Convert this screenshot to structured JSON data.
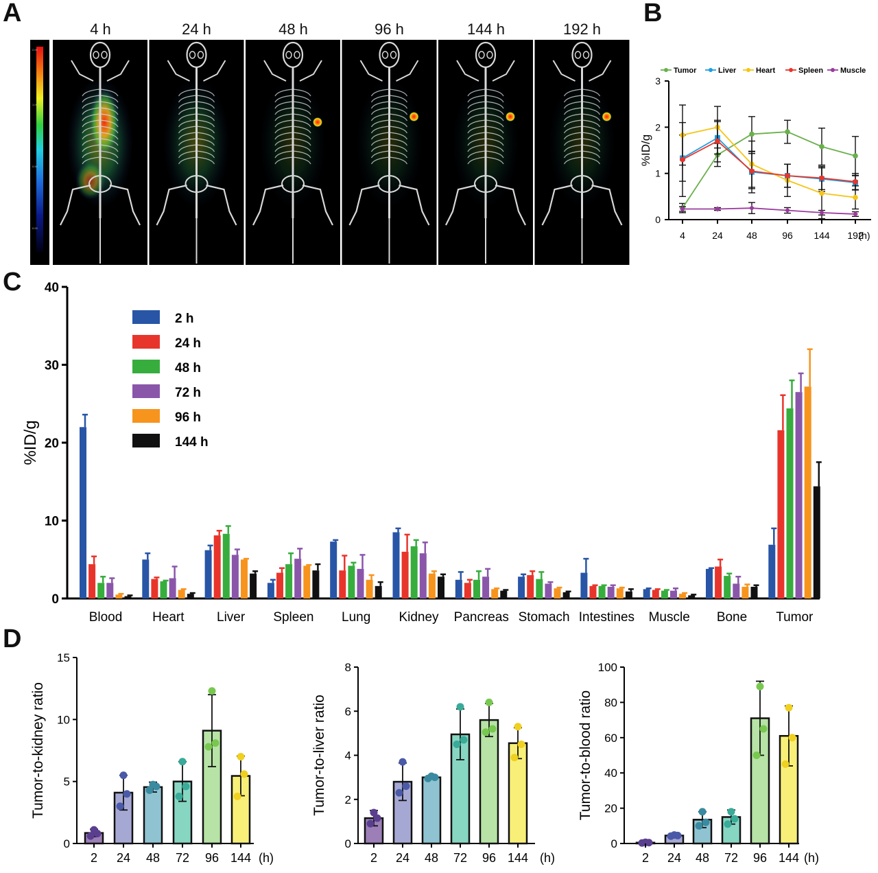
{
  "panels": {
    "a": "A",
    "b": "B",
    "c": "C",
    "d": "D"
  },
  "imaging": {
    "timepoints": [
      "4 h",
      "24 h",
      "48 h",
      "96 h",
      "144 h",
      "192 h"
    ],
    "colorbar_ticks": [
      "2.00",
      "1.00",
      "0.50",
      "0.00"
    ],
    "hotspot_visible": [
      false,
      false,
      true,
      true,
      true,
      true
    ]
  },
  "colors": {
    "tumor": "#6ab04c",
    "liver": "#1e9ee0",
    "heart": "#f5c518",
    "spleen": "#e8352b",
    "muscle": "#9b3a9e",
    "c_2h": "#2855a6",
    "c_24h": "#e8352b",
    "c_48h": "#37ad3e",
    "c_72h": "#8a56aa",
    "c_96h": "#f7941d",
    "c_144h": "#111111"
  },
  "chart_data": [
    {
      "type": "line",
      "ylabel": "%ID/g",
      "ylim": [
        0,
        3
      ],
      "yticks": [
        "0",
        "1",
        "2",
        "3"
      ],
      "x": [
        "4",
        "24",
        "48",
        "96",
        "144",
        "192"
      ],
      "x_unit": "(h)",
      "legend_position": "top",
      "series": [
        {
          "name": "Tumor",
          "values": [
            0.25,
            1.4,
            1.85,
            1.9,
            1.58,
            1.38
          ],
          "err": [
            0.1,
            0.25,
            0.38,
            0.25,
            0.4,
            0.42
          ]
        },
        {
          "name": "Liver",
          "values": [
            1.33,
            1.77,
            1.03,
            0.95,
            0.88,
            0.8
          ],
          "err": [
            0.5,
            0.35,
            0.45,
            0.25,
            0.27,
            0.15
          ]
        },
        {
          "name": "Heart",
          "values": [
            1.83,
            2.0,
            1.2,
            0.85,
            0.57,
            0.48
          ],
          "err": [
            0.65,
            0.45,
            0.5,
            0.35,
            0.55,
            0.25
          ]
        },
        {
          "name": "Spleen",
          "values": [
            1.3,
            1.7,
            1.05,
            0.95,
            0.9,
            0.82
          ],
          "err": [
            0.8,
            0.45,
            0.38,
            0.25,
            0.25,
            0.18
          ]
        },
        {
          "name": "Muscle",
          "values": [
            0.23,
            0.23,
            0.25,
            0.2,
            0.15,
            0.12
          ],
          "err": [
            0.05,
            0.03,
            0.12,
            0.06,
            0.05,
            0.05
          ]
        }
      ]
    },
    {
      "type": "bar",
      "ylabel": "%ID/g",
      "ylim": [
        0,
        40
      ],
      "yticks": [
        "0",
        "10",
        "20",
        "30",
        "40"
      ],
      "categories": [
        "Blood",
        "Heart",
        "Liver",
        "Spleen",
        "Lung",
        "Kidney",
        "Pancreas",
        "Stomach",
        "Intestines",
        "Muscle",
        "Bone",
        "Tumor"
      ],
      "legend_position": "top-left",
      "series": [
        {
          "name": "2 h",
          "values": [
            22.0,
            5.0,
            6.2,
            2.0,
            7.3,
            8.5,
            2.4,
            2.8,
            3.3,
            1.2,
            3.8,
            6.9
          ],
          "err": [
            1.6,
            0.8,
            0.6,
            0.4,
            0.2,
            0.5,
            1.0,
            0.3,
            1.8,
            0.1,
            0.1,
            2.1
          ]
        },
        {
          "name": "24 h",
          "values": [
            4.4,
            2.5,
            8.1,
            3.3,
            3.6,
            6.0,
            2.0,
            3.0,
            1.6,
            1.1,
            4.1,
            21.6
          ],
          "err": [
            1.0,
            0.2,
            0.6,
            0.6,
            1.9,
            2.2,
            0.4,
            0.5,
            0.1,
            0.1,
            0.9,
            4.5
          ]
        },
        {
          "name": "48 h",
          "values": [
            2.0,
            2.2,
            8.3,
            4.4,
            4.2,
            6.7,
            2.4,
            2.5,
            1.6,
            1.0,
            2.9,
            24.4
          ],
          "err": [
            0.8,
            0.1,
            1.0,
            1.4,
            0.4,
            0.8,
            1.1,
            0.9,
            0.1,
            0.1,
            0.3,
            3.6
          ]
        },
        {
          "name": "72 h",
          "values": [
            2.0,
            2.6,
            5.6,
            5.1,
            3.8,
            5.8,
            2.8,
            1.9,
            1.5,
            1.0,
            1.9,
            26.5
          ],
          "err": [
            0.6,
            1.5,
            0.7,
            1.3,
            1.8,
            1.4,
            1.0,
            0.2,
            0.2,
            0.3,
            0.9,
            2.4
          ]
        },
        {
          "name": "96 h",
          "values": [
            0.5,
            1.1,
            5.0,
            4.2,
            2.4,
            3.2,
            1.2,
            1.3,
            1.3,
            0.6,
            1.5,
            27.2
          ],
          "err": [
            0.1,
            0.1,
            0.1,
            0.1,
            0.6,
            0.3,
            0.1,
            0.1,
            0.1,
            0.1,
            0.3,
            4.8
          ]
        },
        {
          "name": "144 h",
          "values": [
            0.3,
            0.6,
            3.2,
            3.6,
            1.6,
            2.8,
            1.0,
            0.8,
            0.9,
            0.4,
            1.5,
            14.4
          ],
          "err": [
            0.1,
            0.1,
            0.3,
            0.8,
            0.5,
            0.3,
            0.1,
            0.1,
            0.3,
            0.1,
            0.2,
            3.1
          ]
        }
      ]
    },
    {
      "type": "bar",
      "ylabel": "Tumor-to-kidney ratio",
      "ylim": [
        0,
        15
      ],
      "yticks": [
        "0",
        "5",
        "10",
        "15"
      ],
      "categories": [
        "2",
        "24",
        "48",
        "72",
        "96",
        "144"
      ],
      "x_unit": "(h)",
      "values": [
        0.85,
        4.1,
        4.55,
        5.0,
        9.1,
        5.45
      ],
      "err": [
        0.3,
        1.4,
        0.4,
        1.6,
        2.9,
        1.6
      ],
      "points": [
        [
          0.6,
          0.8,
          1.1
        ],
        [
          3.0,
          4.0,
          5.5
        ],
        [
          4.3,
          4.6,
          4.75
        ],
        [
          3.8,
          4.6,
          6.6
        ],
        [
          7.8,
          8.1,
          12.3
        ],
        [
          3.8,
          5.6,
          7.0
        ]
      ]
    },
    {
      "type": "bar",
      "ylabel": "Tumor-to-liver ratio",
      "ylim": [
        0,
        8
      ],
      "yticks": [
        "0",
        "2",
        "4",
        "6",
        "8"
      ],
      "categories": [
        "2",
        "24",
        "48",
        "72",
        "96",
        "144"
      ],
      "x_unit": "(h)",
      "values": [
        1.15,
        2.8,
        3.0,
        4.95,
        5.6,
        4.55
      ],
      "err": [
        0.35,
        0.85,
        0.05,
        1.15,
        0.75,
        0.7
      ],
      "points": [
        [
          0.9,
          1.15,
          1.4
        ],
        [
          2.3,
          2.6,
          3.7
        ],
        [
          2.95,
          3.0,
          3.05
        ],
        [
          4.5,
          4.7,
          6.2
        ],
        [
          5.05,
          5.2,
          6.4
        ],
        [
          3.9,
          4.5,
          5.3
        ]
      ]
    },
    {
      "type": "bar",
      "ylabel": "Tumor-to-blood ratio",
      "ylim": [
        0,
        100
      ],
      "yticks": [
        "0",
        "20",
        "40",
        "60",
        "80",
        "100"
      ],
      "categories": [
        "2",
        "24",
        "48",
        "72",
        "96",
        "144"
      ],
      "x_unit": "(h)",
      "values": [
        0.5,
        4.5,
        13.5,
        15.0,
        71.0,
        61.0
      ],
      "err": [
        0.2,
        0.5,
        4.5,
        4.0,
        21.0,
        17.0
      ],
      "points": [
        [
          0.3,
          0.5,
          0.7
        ],
        [
          4.2,
          4.5,
          4.8
        ],
        [
          10.0,
          12.0,
          18.0
        ],
        [
          11.0,
          14.0,
          18.0
        ],
        [
          50.0,
          65.0,
          89.0
        ],
        [
          45.0,
          60.0,
          77.0
        ]
      ]
    }
  ]
}
